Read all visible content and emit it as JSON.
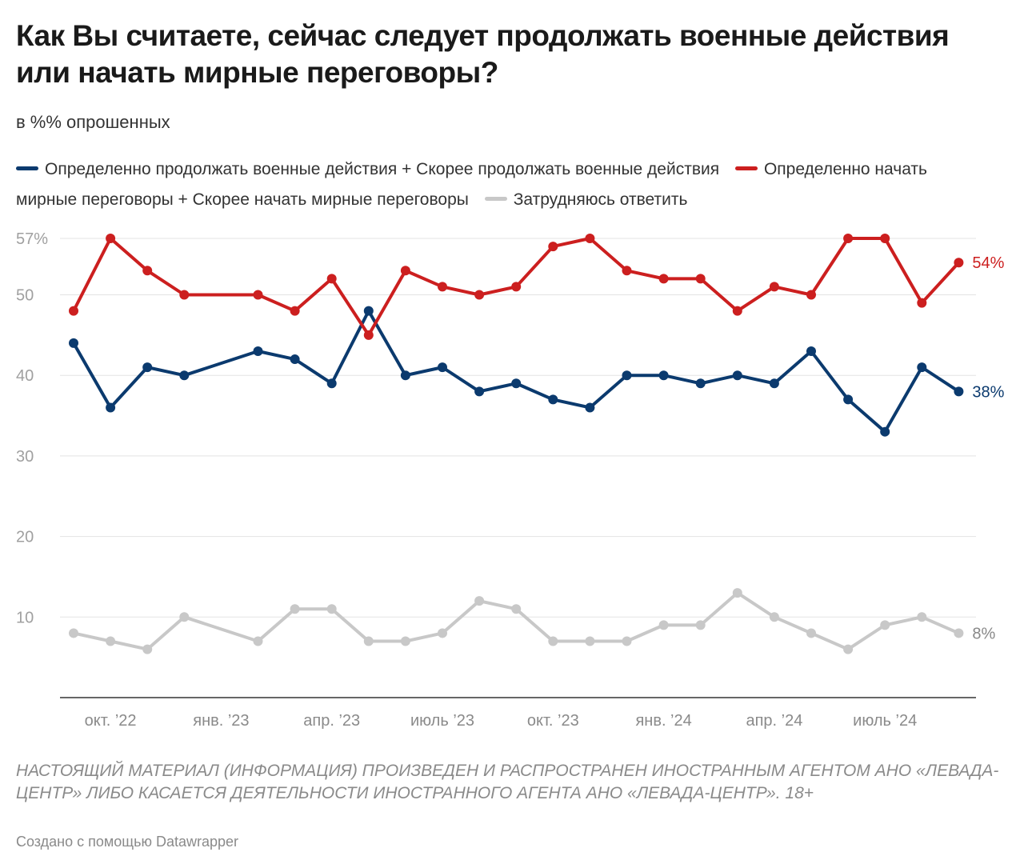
{
  "title": "Как Вы считаете, сейчас следует продолжать военные действия или начать мирные переговоры?",
  "subtitle": "в %% опрошенных",
  "note": "НАСТОЯЩИЙ МАТЕРИАЛ (ИНФОРМАЦИЯ) ПРОИЗВЕДЕН И РАСПРОСТРАНЕН ИНОСТРАННЫМ АГЕНТОМ АНО «ЛЕВАДА-ЦЕНТР» ЛИБО КАСАЕТСЯ ДЕЯТЕЛЬНОСТИ ИНОСТРАННОГО АГЕНТА АНО «ЛЕВАДА-ЦЕНТР». 18+",
  "credit": "Создано с помощью Datawrapper",
  "chart_data": {
    "type": "line",
    "ylim": [
      0,
      57
    ],
    "yticks": [
      {
        "v": 57,
        "label": "57%"
      },
      {
        "v": 50,
        "label": "50"
      },
      {
        "v": 40,
        "label": "40"
      },
      {
        "v": 30,
        "label": "30"
      },
      {
        "v": 20,
        "label": "20"
      },
      {
        "v": 10,
        "label": "10"
      }
    ],
    "xticks": [
      {
        "date": "2022-10",
        "label": "окт. ’22"
      },
      {
        "date": "2023-01",
        "label": "янв. ’23"
      },
      {
        "date": "2023-04",
        "label": "апр. ’23"
      },
      {
        "date": "2023-07",
        "label": "июль ’23"
      },
      {
        "date": "2023-10",
        "label": "окт. ’23"
      },
      {
        "date": "2024-01",
        "label": "янв. ’24"
      },
      {
        "date": "2024-04",
        "label": "апр. ’24"
      },
      {
        "date": "2024-07",
        "label": "июль ’24"
      }
    ],
    "x": [
      "2022-09",
      "2022-10",
      "2022-11",
      "2022-12",
      "2023-02",
      "2023-03",
      "2023-04",
      "2023-05",
      "2023-06",
      "2023-07",
      "2023-08",
      "2023-09",
      "2023-10",
      "2023-11",
      "2023-12",
      "2024-01",
      "2024-02",
      "2024-03",
      "2024-04",
      "2024-05",
      "2024-06",
      "2024-07",
      "2024-08",
      "2024-09"
    ],
    "grid": true,
    "legend_position": "top",
    "series": [
      {
        "name": "Определенно продолжать военные действия + Скорее продолжать военные действия",
        "color": "#0b3a6e",
        "end_label": "38%",
        "values": [
          44,
          36,
          41,
          40,
          43,
          42,
          39,
          48,
          40,
          41,
          38,
          39,
          37,
          36,
          40,
          40,
          39,
          40,
          39,
          43,
          37,
          33,
          41,
          38
        ]
      },
      {
        "name": "Определенно начать мирные переговоры + Скорее начать мирные переговоры",
        "color": "#cc1f1f",
        "end_label": "54%",
        "values": [
          48,
          57,
          53,
          50,
          50,
          48,
          52,
          45,
          53,
          51,
          50,
          51,
          56,
          57,
          53,
          52,
          52,
          48,
          51,
          50,
          57,
          57,
          49,
          54
        ]
      },
      {
        "name": "Затрудняюсь ответить",
        "color": "#c8c8c8",
        "end_label": "8%",
        "label_color": "#888888",
        "values": [
          8,
          7,
          6,
          10,
          7,
          11,
          11,
          7,
          7,
          8,
          12,
          11,
          7,
          7,
          7,
          9,
          9,
          13,
          10,
          8,
          6,
          9,
          10,
          8
        ]
      }
    ]
  }
}
